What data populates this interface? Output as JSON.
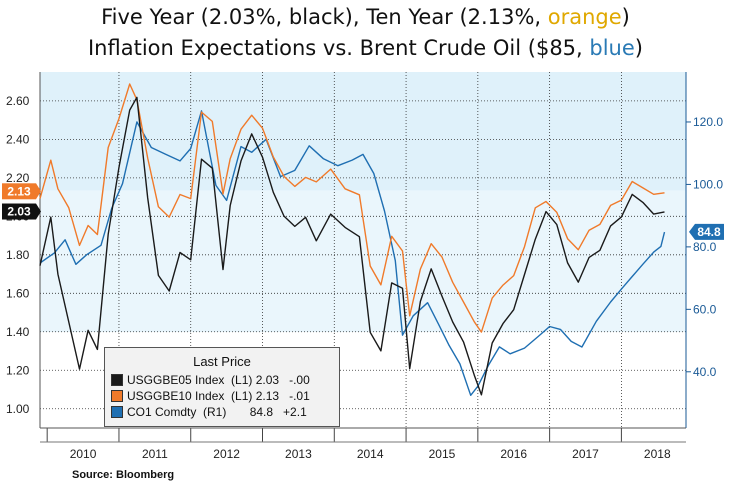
{
  "title": {
    "line1_prefix": "Five Year (2.03%, black), Ten Year (2.13%, ",
    "line1_highlight": "orange",
    "line1_suffix": ")",
    "line2_prefix": "Inflation Expectations  vs. Brent Crude Oil ($85, ",
    "line2_highlight": "blue",
    "line2_suffix": ")"
  },
  "source": "Source: Bloomberg",
  "legend": {
    "header": "Last Price",
    "rows": [
      {
        "text": "USGGBE05 Index  (L1) 2.03   -.00",
        "color": "#1a1a1a"
      },
      {
        "text": "USGGBE10 Index  (L1) 2.13   -.01",
        "color": "#f07a2a"
      },
      {
        "text": "CO1 Comdty  (R1)       84.8   +2.1",
        "color": "#1f6fb2"
      }
    ]
  },
  "badges": {
    "ten_year": "2.13",
    "five_year": "2.03",
    "oil": "84.8"
  },
  "colors": {
    "five_year": "#1a1a1a",
    "ten_year": "#f07a2a",
    "oil": "#1f6fb2",
    "band": "#dff1fa"
  },
  "chart_data": {
    "type": "line",
    "xlabel": "",
    "ylabel_left": "",
    "ylabel_right": "",
    "x_ticks": [
      "2010",
      "2011",
      "2012",
      "2013",
      "2014",
      "2015",
      "2016",
      "2017",
      "2018"
    ],
    "x_range": [
      2009.95,
      2018.95
    ],
    "y_left_ticks": [
      "1.00",
      "1.20",
      "1.40",
      "1.60",
      "1.80",
      "2.00",
      "2.20",
      "2.40",
      "2.60"
    ],
    "y_left_range": [
      0.9,
      2.75
    ],
    "y_right_ticks": [
      "40.0",
      "60.0",
      "80.0",
      "100.0",
      "120.0"
    ],
    "y_right_range": [
      22,
      136
    ],
    "grid": true,
    "legend_position": "bottom-left",
    "series": [
      {
        "axis": "left",
        "key": "five_year",
        "x": [
          2009.95,
          2010.1,
          2010.2,
          2010.35,
          2010.5,
          2010.62,
          2010.75,
          2010.9,
          2011.05,
          2011.2,
          2011.3,
          2011.45,
          2011.6,
          2011.75,
          2011.9,
          2012.05,
          2012.2,
          2012.35,
          2012.5,
          2012.6,
          2012.75,
          2012.9,
          2013.05,
          2013.2,
          2013.35,
          2013.5,
          2013.65,
          2013.8,
          2014.0,
          2014.2,
          2014.4,
          2014.55,
          2014.7,
          2014.85,
          2015.0,
          2015.1,
          2015.25,
          2015.4,
          2015.55,
          2015.7,
          2015.85,
          2016.0,
          2016.1,
          2016.25,
          2016.4,
          2016.55,
          2016.7,
          2016.85,
          2017.0,
          2017.15,
          2017.3,
          2017.45,
          2017.6,
          2017.75,
          2017.9,
          2018.05,
          2018.2,
          2018.35,
          2018.5,
          2018.65
        ],
        "y": [
          1.75,
          2.0,
          1.7,
          1.45,
          1.2,
          1.4,
          1.3,
          1.9,
          2.25,
          2.55,
          2.62,
          2.1,
          1.7,
          1.62,
          1.82,
          1.78,
          2.3,
          2.25,
          1.72,
          2.05,
          2.28,
          2.42,
          2.3,
          2.12,
          2.0,
          1.95,
          2.0,
          1.88,
          2.02,
          1.95,
          1.9,
          1.4,
          1.3,
          1.65,
          1.62,
          1.2,
          1.55,
          1.72,
          1.58,
          1.45,
          1.35,
          1.18,
          1.08,
          1.35,
          1.45,
          1.52,
          1.7,
          1.88,
          2.02,
          1.95,
          1.75,
          1.65,
          1.78,
          1.82,
          1.95,
          2.0,
          2.12,
          2.08,
          2.02,
          2.03
        ]
      },
      {
        "axis": "left",
        "key": "ten_year",
        "x": [
          2009.95,
          2010.1,
          2010.2,
          2010.35,
          2010.5,
          2010.62,
          2010.75,
          2010.9,
          2011.05,
          2011.2,
          2011.3,
          2011.45,
          2011.6,
          2011.75,
          2011.9,
          2012.05,
          2012.2,
          2012.35,
          2012.5,
          2012.6,
          2012.75,
          2012.9,
          2013.05,
          2013.2,
          2013.35,
          2013.5,
          2013.65,
          2013.8,
          2014.0,
          2014.2,
          2014.4,
          2014.55,
          2014.7,
          2014.85,
          2015.0,
          2015.1,
          2015.25,
          2015.4,
          2015.55,
          2015.7,
          2015.85,
          2016.0,
          2016.1,
          2016.25,
          2016.4,
          2016.55,
          2016.7,
          2016.85,
          2017.0,
          2017.15,
          2017.3,
          2017.45,
          2017.6,
          2017.75,
          2017.9,
          2018.05,
          2018.2,
          2018.35,
          2018.5,
          2018.65
        ],
        "y": [
          2.1,
          2.3,
          2.15,
          2.05,
          1.85,
          1.95,
          1.9,
          2.35,
          2.5,
          2.68,
          2.6,
          2.3,
          2.05,
          2.0,
          2.12,
          2.1,
          2.55,
          2.5,
          2.12,
          2.3,
          2.45,
          2.52,
          2.45,
          2.3,
          2.2,
          2.15,
          2.2,
          2.18,
          2.25,
          2.15,
          2.12,
          1.75,
          1.65,
          1.9,
          1.82,
          1.48,
          1.72,
          1.85,
          1.78,
          1.65,
          1.55,
          1.45,
          1.4,
          1.58,
          1.65,
          1.7,
          1.85,
          2.05,
          2.08,
          2.02,
          1.88,
          1.82,
          1.92,
          1.95,
          2.05,
          2.08,
          2.18,
          2.15,
          2.12,
          2.13
        ]
      },
      {
        "axis": "right",
        "key": "oil",
        "x": [
          2009.95,
          2010.15,
          2010.3,
          2010.45,
          2010.6,
          2010.8,
          2010.95,
          2011.1,
          2011.3,
          2011.5,
          2011.7,
          2011.9,
          2012.05,
          2012.2,
          2012.4,
          2012.55,
          2012.75,
          2012.9,
          2013.1,
          2013.3,
          2013.5,
          2013.7,
          2013.9,
          2014.1,
          2014.3,
          2014.45,
          2014.6,
          2014.75,
          2014.9,
          2015.0,
          2015.15,
          2015.35,
          2015.5,
          2015.65,
          2015.8,
          2015.95,
          2016.05,
          2016.2,
          2016.35,
          2016.5,
          2016.7,
          2016.9,
          2017.05,
          2017.2,
          2017.35,
          2017.5,
          2017.7,
          2017.9,
          2018.05,
          2018.2,
          2018.35,
          2018.5,
          2018.6,
          2018.65
        ],
        "y": [
          75,
          78,
          82,
          74,
          77,
          80,
          92,
          100,
          120,
          112,
          110,
          108,
          112,
          124,
          100,
          95,
          112,
          110,
          114,
          102,
          104,
          112,
          108,
          106,
          108,
          110,
          104,
          92,
          76,
          52,
          58,
          62,
          55,
          48,
          42,
          32,
          35,
          42,
          48,
          46,
          48,
          52,
          55,
          54,
          50,
          48,
          56,
          62,
          66,
          70,
          74,
          78,
          80,
          84.8
        ]
      }
    ]
  }
}
